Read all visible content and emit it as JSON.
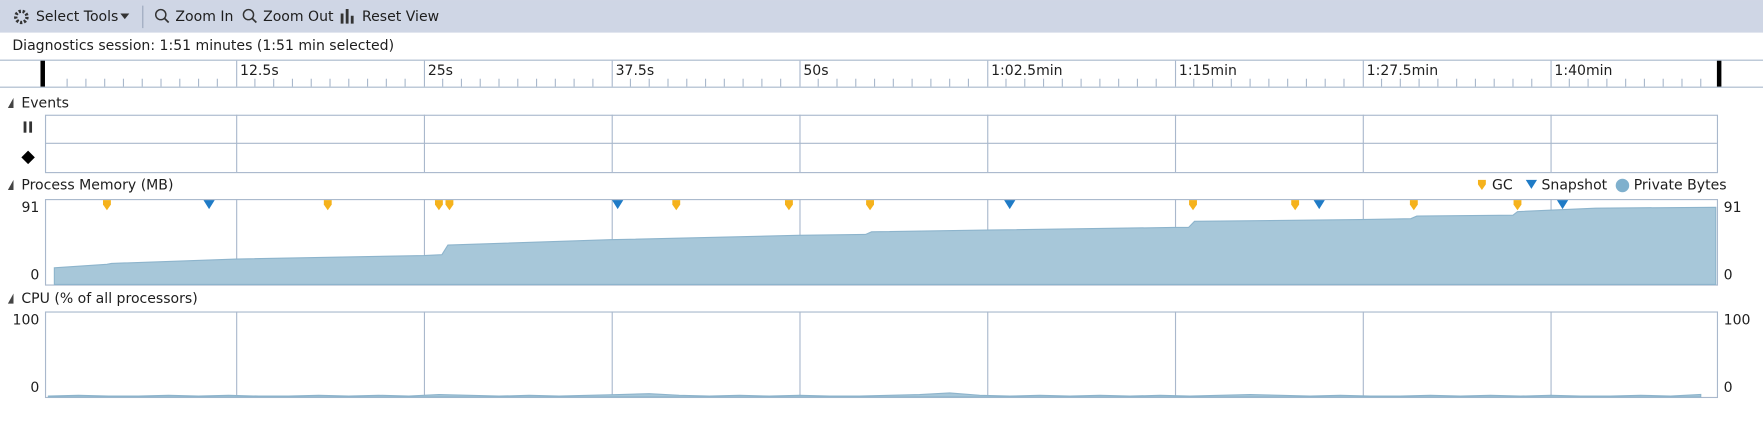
{
  "toolbar": {
    "buttons": [
      "Select Tools",
      "Zoom In",
      "Zoom Out",
      "Reset View"
    ]
  },
  "session": "Diagnostics session: 1:51 minutes (1:51 min selected)",
  "timeline": {
    "xlim": [
      0,
      111
    ],
    "xticks": [
      {
        "value": 12.5,
        "label": "12.5s"
      },
      {
        "value": 25,
        "label": "25s"
      },
      {
        "value": 37.5,
        "label": "37.5s"
      },
      {
        "value": 50,
        "label": "50s"
      },
      {
        "value": 62.5,
        "label": "1:02.5min"
      },
      {
        "value": 75,
        "label": "1:15min"
      },
      {
        "value": 87.5,
        "label": "1:27.5min"
      },
      {
        "value": 100,
        "label": "1:40min"
      }
    ],
    "minor_step": 1.25
  },
  "events": {
    "title": "Events"
  },
  "chart_data": [
    {
      "type": "area",
      "title": "Process Memory (MB)",
      "x": [
        0.4,
        3.9,
        4.2,
        12.5,
        25,
        26.2,
        26.6,
        37.4,
        49.9,
        54.4,
        54.8,
        62.4,
        74.9,
        75.9,
        76.3,
        87.3,
        90.7,
        91.1,
        97.5,
        97.8,
        103,
        111
      ],
      "series": [
        {
          "name": "Private Bytes",
          "color": "#a7c7d9",
          "values": [
            19,
            23,
            24,
            29,
            33,
            34,
            45,
            51,
            56,
            57,
            60,
            62,
            65,
            65,
            72,
            74,
            75,
            78,
            79,
            83,
            87,
            88
          ]
        }
      ],
      "events": [
        {
          "name": "GC",
          "color": "#f5b21c",
          "x": [
            3.9,
            18.6,
            26.0,
            26.7,
            41.8,
            49.3,
            54.7,
            76.2,
            83.0,
            90.9,
            97.8
          ]
        },
        {
          "name": "Snapshot",
          "color": "#1f7bc6",
          "x": [
            10.7,
            37.9,
            64.0,
            84.6,
            100.8
          ]
        }
      ],
      "xlim": [
        0,
        111
      ],
      "ylim": [
        0,
        91
      ],
      "yticks": [
        0,
        91
      ]
    },
    {
      "type": "area",
      "title": "CPU (% of all processors)",
      "x": [
        0,
        2,
        4,
        6,
        8,
        10,
        12,
        14,
        16,
        18,
        20,
        22,
        24,
        26,
        28,
        30,
        32,
        34,
        36,
        38,
        40,
        42,
        44,
        46,
        48,
        50,
        52,
        54,
        56,
        58,
        60,
        62,
        64,
        66,
        68,
        70,
        72,
        74,
        76,
        78,
        80,
        82,
        84,
        86,
        88,
        90,
        92,
        94,
        96,
        98,
        100,
        102,
        104,
        106,
        108,
        110
      ],
      "values": [
        1,
        2,
        1,
        1,
        2,
        1,
        2,
        1,
        1,
        2,
        1,
        2,
        1,
        3,
        2,
        1,
        2,
        1,
        2,
        3,
        4,
        2,
        1,
        2,
        1,
        2,
        1,
        1,
        2,
        3,
        5,
        2,
        1,
        2,
        1,
        2,
        1,
        2,
        1,
        2,
        3,
        2,
        1,
        2,
        1,
        1,
        2,
        1,
        2,
        1,
        2,
        1,
        1,
        2,
        1,
        3
      ],
      "color": "#a7c7d9",
      "xlim": [
        0,
        111
      ],
      "ylim": [
        0,
        100
      ],
      "yticks": [
        0,
        100
      ]
    }
  ]
}
